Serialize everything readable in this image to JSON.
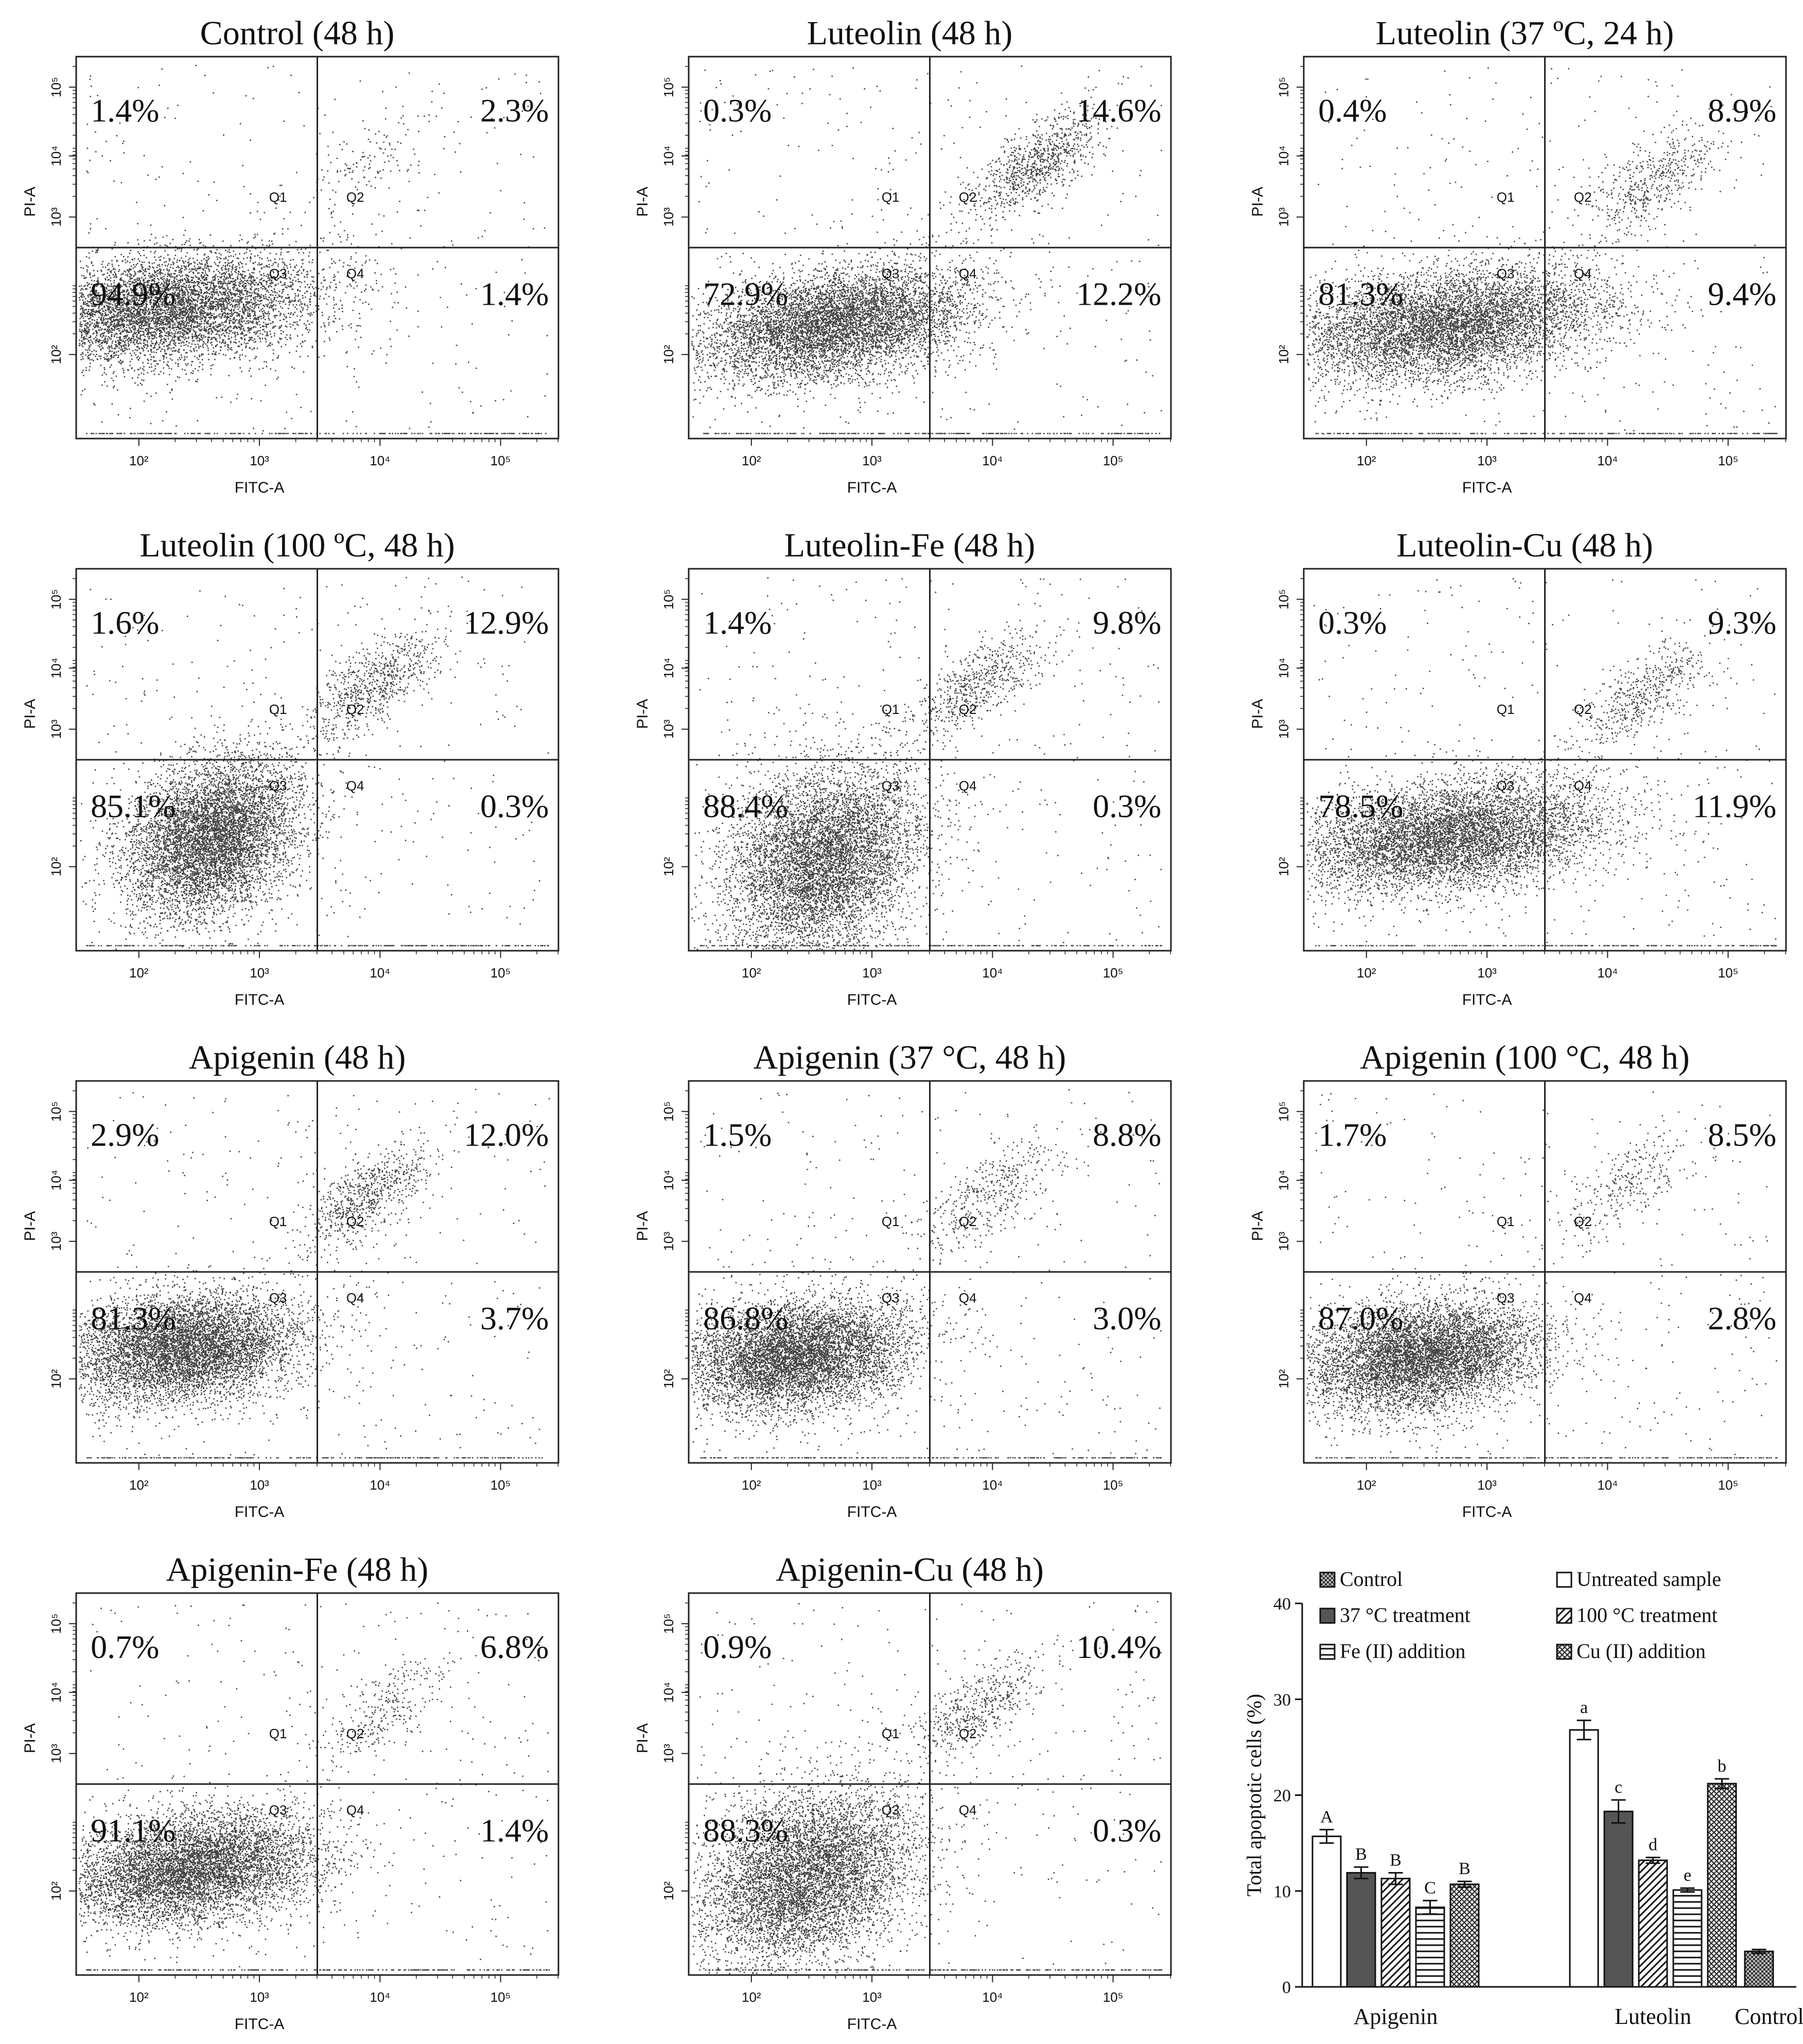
{
  "chart_data": [
    {
      "type": "scatter",
      "title": "Control (48 h)",
      "xlabel": "FITC-A",
      "ylabel": "PI-A",
      "quadrant_labels": [
        "Q1",
        "Q2",
        "Q3",
        "Q4"
      ],
      "percentages": {
        "Q1": "1.4%",
        "Q2": "2.3%",
        "Q3": "94.9%",
        "Q4": "1.4%"
      },
      "x_ticks": [
        "10²",
        "10³",
        "10⁴",
        "10⁵"
      ],
      "y_ticks": [
        "10²",
        "10³",
        "10⁴",
        "10⁵"
      ],
      "scale": "log",
      "density": {
        "q3": "compact-left",
        "q2": "sparse"
      }
    },
    {
      "type": "scatter",
      "title": "Luteolin (48 h)",
      "xlabel": "FITC-A",
      "ylabel": "PI-A",
      "quadrant_labels": [
        "Q1",
        "Q2",
        "Q3",
        "Q4"
      ],
      "percentages": {
        "Q1": "0.3%",
        "Q2": "14.6%",
        "Q3": "72.9%",
        "Q4": "12.2%"
      },
      "x_ticks": [
        "10²",
        "10³",
        "10⁴",
        "10⁵"
      ],
      "y_ticks": [
        "10²",
        "10³",
        "10⁴",
        "10⁵"
      ],
      "scale": "log"
    },
    {
      "type": "scatter",
      "title": "Luteolin (37 ºC,  24 h)",
      "xlabel": "FITC-A",
      "ylabel": "PI-A",
      "quadrant_labels": [
        "Q1",
        "Q2",
        "Q3",
        "Q4"
      ],
      "percentages": {
        "Q1": "0.4%",
        "Q2": "8.9%",
        "Q3": "81.3%",
        "Q4": "9.4%"
      },
      "x_ticks": [
        "10²",
        "10³",
        "10⁴",
        "10⁵"
      ],
      "y_ticks": [
        "10²",
        "10³",
        "10⁴",
        "10⁵"
      ],
      "scale": "log"
    },
    {
      "type": "scatter",
      "title": "Luteolin (100 ºC, 48 h)",
      "xlabel": "FITC-A",
      "ylabel": "PI-A",
      "quadrant_labels": [
        "Q1",
        "Q2",
        "Q3",
        "Q4"
      ],
      "percentages": {
        "Q1": "1.6%",
        "Q2": "12.9%",
        "Q3": "85.1%",
        "Q4": "0.3%"
      },
      "x_ticks": [
        "10²",
        "10³",
        "10⁴",
        "10⁵"
      ],
      "y_ticks": [
        "10²",
        "10³",
        "10⁴",
        "10⁵"
      ],
      "scale": "log"
    },
    {
      "type": "scatter",
      "title": "Luteolin-Fe (48 h)",
      "xlabel": "FITC-A",
      "ylabel": "PI-A",
      "quadrant_labels": [
        "Q1",
        "Q2",
        "Q3",
        "Q4"
      ],
      "percentages": {
        "Q1": "1.4%",
        "Q2": "9.8%",
        "Q3": "88.4%",
        "Q4": "0.3%"
      },
      "x_ticks": [
        "10²",
        "10³",
        "10⁴",
        "10⁵"
      ],
      "y_ticks": [
        "10²",
        "10³",
        "10⁴",
        "10⁵"
      ],
      "scale": "log"
    },
    {
      "type": "scatter",
      "title": "Luteolin-Cu (48 h)",
      "xlabel": "FITC-A",
      "ylabel": "PI-A",
      "quadrant_labels": [
        "Q1",
        "Q2",
        "Q3",
        "Q4"
      ],
      "percentages": {
        "Q1": "0.3%",
        "Q2": "9.3%",
        "Q3": "78.5%",
        "Q4": "11.9%"
      },
      "x_ticks": [
        "10²",
        "10³",
        "10⁴",
        "10⁵"
      ],
      "y_ticks": [
        "10²",
        "10³",
        "10⁴",
        "10⁵"
      ],
      "scale": "log"
    },
    {
      "type": "scatter",
      "title": "Apigenin (48 h)",
      "xlabel": "FITC-A",
      "ylabel": "PI-A",
      "quadrant_labels": [
        "Q1",
        "Q2",
        "Q3",
        "Q4"
      ],
      "percentages": {
        "Q1": "2.9%",
        "Q2": "12.0%",
        "Q3": "81.3%",
        "Q4": "3.7%"
      },
      "x_ticks": [
        "10²",
        "10³",
        "10⁴",
        "10⁵"
      ],
      "y_ticks": [
        "10²",
        "10³",
        "10⁴",
        "10⁵"
      ],
      "scale": "log"
    },
    {
      "type": "scatter",
      "title": "Apigenin (37 °C, 48 h)",
      "xlabel": "FITC-A",
      "ylabel": "PI-A",
      "quadrant_labels": [
        "Q1",
        "Q2",
        "Q3",
        "Q4"
      ],
      "percentages": {
        "Q1": "1.5%",
        "Q2": "8.8%",
        "Q3": "86.8%",
        "Q4": "3.0%"
      },
      "x_ticks": [
        "10²",
        "10³",
        "10⁴",
        "10⁵"
      ],
      "y_ticks": [
        "10²",
        "10³",
        "10⁴",
        "10⁵"
      ],
      "scale": "log"
    },
    {
      "type": "scatter",
      "title": "Apigenin (100 °C, 48 h)",
      "xlabel": "FITC-A",
      "ylabel": "PI-A",
      "quadrant_labels": [
        "Q1",
        "Q2",
        "Q3",
        "Q4"
      ],
      "percentages": {
        "Q1": "1.7%",
        "Q2": "8.5%",
        "Q3": "87.0%",
        "Q4": "2.8%"
      },
      "x_ticks": [
        "10²",
        "10³",
        "10⁴",
        "10⁵"
      ],
      "y_ticks": [
        "10²",
        "10³",
        "10⁴",
        "10⁵"
      ],
      "scale": "log"
    },
    {
      "type": "scatter",
      "title": "Apigenin-Fe (48 h)",
      "xlabel": "FITC-A",
      "ylabel": "PI-A",
      "quadrant_labels": [
        "Q1",
        "Q2",
        "Q3",
        "Q4"
      ],
      "percentages": {
        "Q1": "0.7%",
        "Q2": "6.8%",
        "Q3": "91.1%",
        "Q4": "1.4%"
      },
      "x_ticks": [
        "10²",
        "10³",
        "10⁴",
        "10⁵"
      ],
      "y_ticks": [
        "10²",
        "10³",
        "10⁴",
        "10⁵"
      ],
      "scale": "log"
    },
    {
      "type": "scatter",
      "title": "Apigenin-Cu (48 h)",
      "xlabel": "FITC-A",
      "ylabel": "PI-A",
      "quadrant_labels": [
        "Q1",
        "Q2",
        "Q3",
        "Q4"
      ],
      "percentages": {
        "Q1": "0.9%",
        "Q2": "10.4%",
        "Q3": "88.3%",
        "Q4": "0.3%"
      },
      "x_ticks": [
        "10²",
        "10³",
        "10⁴",
        "10⁵"
      ],
      "y_ticks": [
        "10²",
        "10³",
        "10⁴",
        "10⁵"
      ],
      "scale": "log"
    },
    {
      "type": "bar",
      "ylabel": "Total apoptotic cells (%)",
      "ylim": [
        0,
        40
      ],
      "yticks": [
        0,
        10,
        20,
        30,
        40
      ],
      "groups": [
        "Apigenin",
        "Luteolin",
        "Control"
      ],
      "legend": [
        "Control",
        "Untreated sample",
        "37 °C treatment",
        "100 °C treatment",
        "Fe (II) addition",
        "Cu (II) addition"
      ],
      "legend_position": "top",
      "series": [
        {
          "name": "Untreated sample",
          "pattern": "white",
          "values": [
            15.7,
            26.8,
            null
          ],
          "errors": [
            0.7,
            1.0,
            null
          ],
          "letters": [
            "A",
            "a",
            ""
          ]
        },
        {
          "name": "37 °C treatment",
          "pattern": "dark",
          "values": [
            11.9,
            18.3,
            null
          ],
          "errors": [
            0.6,
            1.2,
            null
          ],
          "letters": [
            "B",
            "c",
            ""
          ]
        },
        {
          "name": "100 °C treatment",
          "pattern": "diagonal",
          "values": [
            11.3,
            13.2,
            null
          ],
          "errors": [
            0.6,
            0.3,
            null
          ],
          "letters": [
            "B",
            "d",
            ""
          ]
        },
        {
          "name": "Fe (II) addition",
          "pattern": "horizontal",
          "values": [
            8.3,
            10.1,
            null
          ],
          "errors": [
            0.7,
            0.2,
            null
          ],
          "letters": [
            "C",
            "e",
            ""
          ]
        },
        {
          "name": "Cu (II) addition",
          "pattern": "cross",
          "values": [
            10.7,
            21.2,
            null
          ],
          "errors": [
            0.3,
            0.5,
            null
          ],
          "letters": [
            "B",
            "b",
            ""
          ]
        },
        {
          "name": "Control",
          "pattern": "checker",
          "values": [
            null,
            null,
            3.7
          ],
          "errors": [
            null,
            null,
            0.2
          ],
          "letters": [
            "",
            "",
            ""
          ]
        }
      ]
    }
  ]
}
